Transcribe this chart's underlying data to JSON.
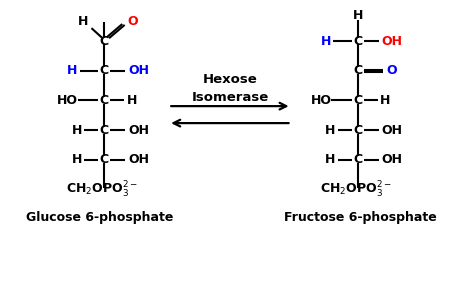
{
  "bg_color": "#ffffff",
  "black": "#000000",
  "blue": "#0000ff",
  "red": "#ff0000",
  "glucose_label": "Glucose 6-phosphate",
  "fructose_label": "Fructose 6-phosphate",
  "enzyme_line1": "Hexose",
  "enzyme_line2": "Isomerase"
}
